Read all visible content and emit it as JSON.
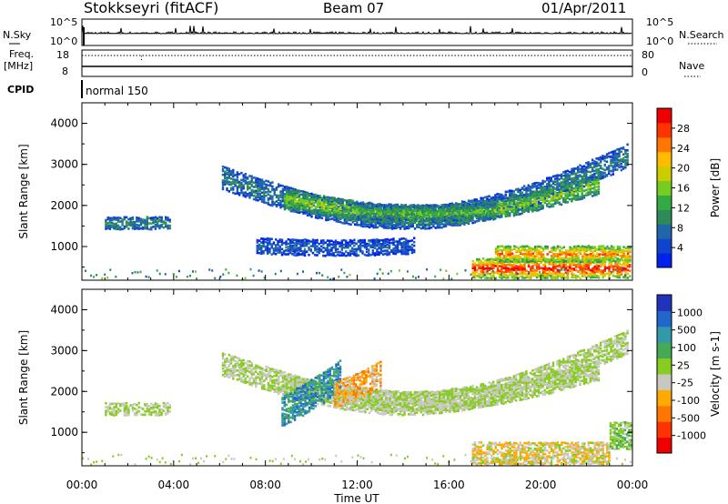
{
  "header": {
    "station": "Stokkseyri (fitACF)",
    "beam": "Beam 07",
    "date": "01/Apr/2011"
  },
  "strips": {
    "nsky_label": "N.Sky",
    "nsearch_label": "N.Search",
    "count_ticks": [
      "10^5",
      "10^0"
    ],
    "freq_label_1": "Freq.",
    "freq_label_2": "[MHz]",
    "freq_ticks": [
      "18",
      "8"
    ],
    "nave_label": "Nave",
    "nave_ticks": [
      "80",
      "0"
    ],
    "cpid_label": "CPID",
    "cpid_value": "normal 150"
  },
  "chart_data": [
    {
      "type": "heatmap",
      "title": "",
      "quantity": "Power",
      "xlabel": "",
      "ylabel": "Slant Range [km]",
      "xlim": [
        "00:00",
        "24:00"
      ],
      "ylim": [
        180,
        4500
      ],
      "x_ticks": [
        "00:00",
        "04:00",
        "08:00",
        "12:00",
        "16:00",
        "20:00",
        "00:00"
      ],
      "y_ticks": [
        1000,
        2000,
        3000,
        4000
      ],
      "colorbar": {
        "label": "Power [dB]",
        "tick_labels": [
          "28",
          "24",
          "20",
          "16",
          "12",
          "8",
          "4"
        ],
        "range": [
          0,
          30
        ],
        "colors": [
          "#0022ee",
          "#1144cc",
          "#2266aa",
          "#2e8b57",
          "#33aa44",
          "#77cc22",
          "#cccc00",
          "#ffbb00",
          "#ff7700",
          "#ff3300",
          "#ee0000"
        ]
      },
      "features": [
        {
          "t0": 6.1,
          "t1": 23.8,
          "r_start": 2650,
          "r_end": 3200,
          "r_mid_dip": 1700,
          "width_km": 250,
          "dB": 9
        },
        {
          "t0": 8.8,
          "t1": 22.5,
          "r_start": 2150,
          "r_end": 2500,
          "r_mid_dip": 1750,
          "width_km": 200,
          "dB": 16
        },
        {
          "t0": 12.0,
          "t1": 18.0,
          "r_start": 1850,
          "r_end": 1850,
          "r_mid_dip": 1800,
          "width_km": 150,
          "dB": 13
        },
        {
          "t0": 1.0,
          "t1": 3.8,
          "r_start": 1550,
          "r_end": 1550,
          "r_mid_dip": 1550,
          "width_km": 120,
          "dB": 10
        },
        {
          "t0": 7.6,
          "t1": 14.5,
          "r_start": 1000,
          "r_end": 1000,
          "r_mid_dip": 950,
          "width_km": 150,
          "dB": 6
        },
        {
          "t0": 17.0,
          "t1": 23.9,
          "r_start": 450,
          "r_end": 450,
          "r_mid_dip": 450,
          "width_km": 200,
          "dB": 28
        },
        {
          "t0": 18.0,
          "t1": 23.9,
          "r_start": 800,
          "r_end": 800,
          "r_mid_dip": 800,
          "width_km": 150,
          "dB": 24
        }
      ]
    },
    {
      "type": "heatmap",
      "title": "",
      "quantity": "Velocity",
      "xlabel": "Time UT",
      "ylabel": "Slant Range [km]",
      "xlim": [
        "00:00",
        "24:00"
      ],
      "ylim": [
        180,
        4500
      ],
      "x_ticks": [
        "00:00",
        "04:00",
        "08:00",
        "12:00",
        "16:00",
        "20:00",
        "00:00"
      ],
      "y_ticks": [
        1000,
        2000,
        3000,
        4000
      ],
      "colorbar": {
        "label": "Velocity [m s^-1]",
        "tick_labels": [
          "1000",
          "500",
          "100",
          "25",
          "-25",
          "-100",
          "-500",
          "-1000"
        ],
        "range": [
          -1000,
          1000
        ],
        "colors": [
          "#2233bb",
          "#2266cc",
          "#3399aa",
          "#44aa55",
          "#88cc22",
          "#c8c8c0",
          "#ffaa00",
          "#ff7700",
          "#ff3300",
          "#ee0000"
        ]
      },
      "features": [
        {
          "t0": 6.1,
          "t1": 23.8,
          "r_start": 2650,
          "r_end": 3200,
          "r_mid_dip": 1700,
          "width_km": 250,
          "vel": 0
        },
        {
          "t0": 8.8,
          "t1": 22.5,
          "r_start": 2150,
          "r_end": 2500,
          "r_mid_dip": 1750,
          "width_km": 200,
          "vel": 0
        },
        {
          "t0": 8.7,
          "t1": 11.3,
          "r_start": 1500,
          "r_end": 2400,
          "r_mid_dip": 1900,
          "width_km": 350,
          "vel": 500
        },
        {
          "t0": 11.0,
          "t1": 13.0,
          "r_start": 1900,
          "r_end": 2400,
          "r_mid_dip": 2100,
          "width_km": 300,
          "vel": -300
        },
        {
          "t0": 1.0,
          "t1": 3.8,
          "r_start": 1550,
          "r_end": 1550,
          "r_mid_dip": 1550,
          "width_km": 120,
          "vel": 0
        },
        {
          "t0": 17.0,
          "t1": 23.0,
          "r_start": 450,
          "r_end": 450,
          "r_mid_dip": 450,
          "width_km": 250,
          "vel": -150
        },
        {
          "t0": 23.0,
          "t1": 23.9,
          "r_start": 900,
          "r_end": 900,
          "r_mid_dip": 900,
          "width_km": 300,
          "vel": 120
        }
      ]
    }
  ]
}
